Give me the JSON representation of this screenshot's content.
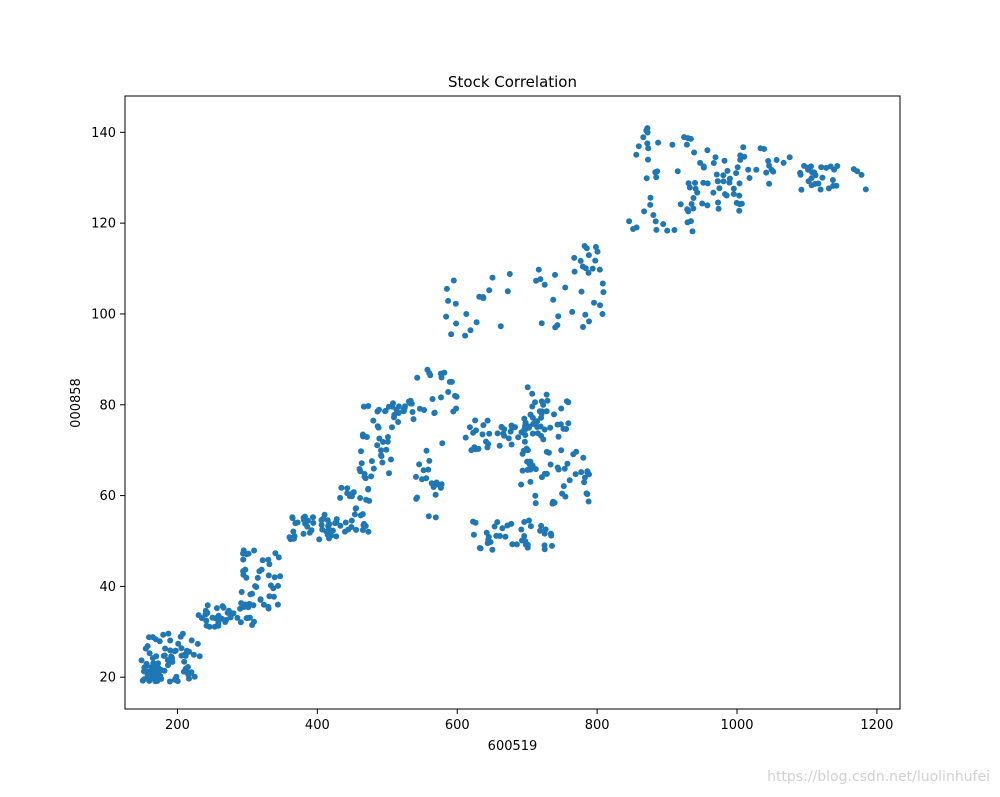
{
  "chart_data": {
    "type": "scatter",
    "title": "Stock Correlation",
    "xlabel": "600519",
    "ylabel": "000858",
    "xlim": [
      125,
      1233
    ],
    "ylim": [
      13,
      148
    ],
    "xticks": [
      200,
      400,
      600,
      800,
      1000,
      1200
    ],
    "yticks": [
      20,
      40,
      60,
      80,
      100,
      120,
      140
    ],
    "color": "#1f77b4",
    "seed": 20190601,
    "clusters": [
      {
        "n": 70,
        "x": [
          148,
          235
        ],
        "y": [
          19,
          30
        ]
      },
      {
        "n": 30,
        "x": [
          150,
          175
        ],
        "y": [
          19,
          23
        ]
      },
      {
        "n": 40,
        "x": [
          230,
          310
        ],
        "y": [
          31,
          36
        ]
      },
      {
        "n": 40,
        "x": [
          290,
          350
        ],
        "y": [
          35,
          48
        ]
      },
      {
        "n": 40,
        "x": [
          360,
          430
        ],
        "y": [
          50,
          56
        ]
      },
      {
        "n": 30,
        "x": [
          430,
          475
        ],
        "y": [
          52,
          62
        ]
      },
      {
        "n": 35,
        "x": [
          460,
          510
        ],
        "y": [
          62,
          80
        ]
      },
      {
        "n": 20,
        "x": [
          495,
          540
        ],
        "y": [
          76,
          81
        ]
      },
      {
        "n": 20,
        "x": [
          540,
          600
        ],
        "y": [
          78,
          88
        ]
      },
      {
        "n": 45,
        "x": [
          610,
          710
        ],
        "y": [
          70,
          77
        ]
      },
      {
        "n": 45,
        "x": [
          690,
          790
        ],
        "y": [
          58,
          70
        ]
      },
      {
        "n": 35,
        "x": [
          700,
          760
        ],
        "y": [
          72,
          84
        ]
      },
      {
        "n": 20,
        "x": [
          540,
          580
        ],
        "y": [
          55,
          72
        ]
      },
      {
        "n": 40,
        "x": [
          620,
          740
        ],
        "y": [
          48,
          55
        ]
      },
      {
        "n": 20,
        "x": [
          580,
          680
        ],
        "y": [
          94,
          110
        ]
      },
      {
        "n": 25,
        "x": [
          710,
          810
        ],
        "y": [
          97,
          110
        ]
      },
      {
        "n": 10,
        "x": [
          760,
          820
        ],
        "y": [
          110,
          115
        ]
      },
      {
        "n": 40,
        "x": [
          840,
          940
        ],
        "y": [
          117,
          142
        ]
      },
      {
        "n": 45,
        "x": [
          930,
          1010
        ],
        "y": [
          122,
          137
        ]
      },
      {
        "n": 15,
        "x": [
          1010,
          1080
        ],
        "y": [
          128,
          137
        ]
      },
      {
        "n": 30,
        "x": [
          1090,
          1185
        ],
        "y": [
          127,
          133
        ]
      }
    ]
  },
  "watermark": "https://blog.csdn.net/luolinhufei"
}
